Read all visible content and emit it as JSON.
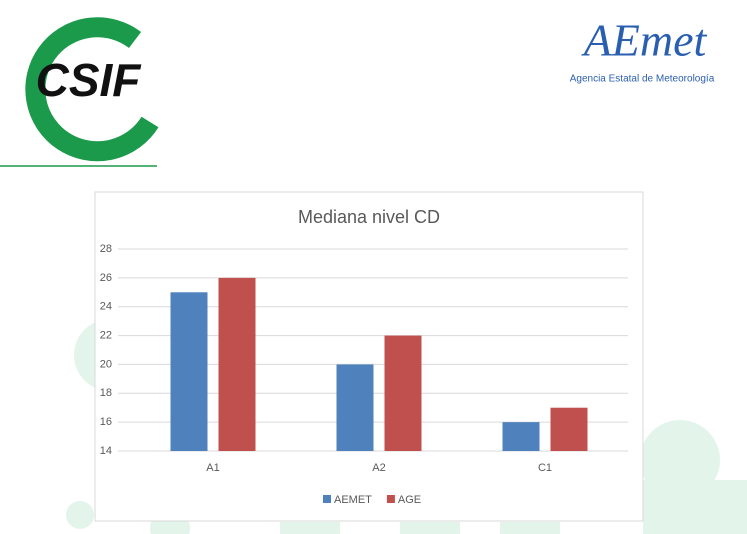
{
  "header": {
    "left_logo": "CSIF",
    "right_logo": "AEmet",
    "right_logo_subtitle": "Agencia Estatal de Meteorología"
  },
  "chart_data": {
    "type": "bar",
    "title": "Mediana nivel CD",
    "categories": [
      "A1",
      "A2",
      "C1"
    ],
    "series": [
      {
        "name": "AEMET",
        "color": "#4f81bd",
        "values": [
          25,
          20,
          16
        ]
      },
      {
        "name": "AGE",
        "color": "#c0504d",
        "values": [
          26,
          22,
          17
        ]
      }
    ],
    "ylim": [
      14,
      28
    ],
    "yticks": [
      14,
      16,
      18,
      20,
      22,
      24,
      26,
      28
    ],
    "grid": true,
    "legend": "bottom"
  }
}
